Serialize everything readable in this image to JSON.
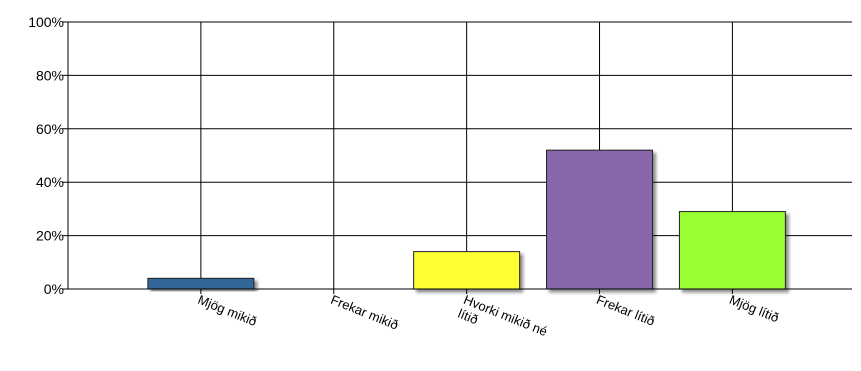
{
  "chart_data": {
    "type": "bar",
    "categories": [
      "Mjög mikið",
      "Frekar mikið",
      "Hvorki mikið né lítið",
      "Frekar lítið",
      "Mjög lítið"
    ],
    "category_label_lines": [
      [
        "Mjög mikið"
      ],
      [
        "Frekar mikið"
      ],
      [
        "Hvorki mikið né",
        "lítið"
      ],
      [
        "Frekar lítið"
      ],
      [
        "Mjög lítið"
      ]
    ],
    "values": [
      4,
      0,
      14,
      52,
      29
    ],
    "colors": [
      "#336699",
      "#99cc33",
      "#ffff33",
      "#8866aa",
      "#99ff33"
    ],
    "y_ticks": [
      "0%",
      "20%",
      "40%",
      "60%",
      "80%",
      "100%"
    ],
    "ylim": [
      0,
      100
    ],
    "title": "",
    "xlabel": "",
    "ylabel": "",
    "grid": true,
    "legend": "none"
  }
}
